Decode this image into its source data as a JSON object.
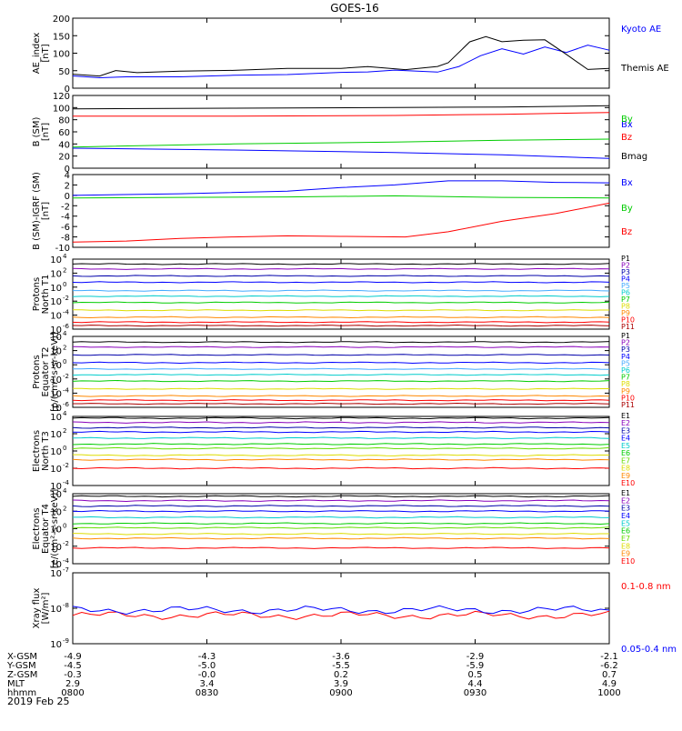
{
  "title": "GOES-16",
  "date": "2019 Feb 25",
  "colors": {
    "black": "#000000",
    "blue": "#0000ff",
    "green": "#00cc00",
    "red": "#ff0000",
    "navy": "#0000aa",
    "purple": "#8800bb",
    "cyan": "#00cccc",
    "lime": "#66dd00",
    "yellow": "#dddd00",
    "orange": "#ff8800",
    "lightblue": "#44aaff",
    "teal": "#00aa88"
  },
  "footer": {
    "rows": [
      {
        "label": "X-GSM",
        "values": [
          "-4.9",
          "-4.3",
          "-3.6",
          "-2.9",
          "-2.1"
        ]
      },
      {
        "label": "Y-GSM",
        "values": [
          "-4.5",
          "-5.0",
          "-5.5",
          "-5.9",
          "-6.2"
        ]
      },
      {
        "label": "Z-GSM",
        "values": [
          "-0.3",
          "-0.0",
          "0.2",
          "0.5",
          "0.7"
        ]
      },
      {
        "label": "MLT",
        "values": [
          "2.9",
          "3.4",
          "3.9",
          "4.4",
          "4.9"
        ]
      },
      {
        "label": "hhmm",
        "values": [
          "0800",
          "0830",
          "0900",
          "0930",
          "1000"
        ]
      }
    ]
  },
  "chart_data": [
    {
      "type": "line",
      "ylabel": [
        "AE_index",
        "[nT]"
      ],
      "ylim": [
        0,
        200
      ],
      "yticks": [
        "200",
        "150",
        "100",
        "50",
        "0"
      ],
      "x": [
        "0800",
        "0830",
        "0900",
        "0930",
        "1000"
      ],
      "series": [
        {
          "name": "Kyoto AE",
          "color": "#0000ff",
          "points": [
            [
              0,
              35
            ],
            [
              0.05,
              30
            ],
            [
              0.1,
              32
            ],
            [
              0.2,
              33
            ],
            [
              0.3,
              36
            ],
            [
              0.4,
              40
            ],
            [
              0.5,
              44
            ],
            [
              0.55,
              48
            ],
            [
              0.6,
              50
            ],
            [
              0.68,
              48
            ],
            [
              0.72,
              60
            ],
            [
              0.76,
              95
            ],
            [
              0.8,
              110
            ],
            [
              0.84,
              100
            ],
            [
              0.88,
              115
            ],
            [
              0.92,
              105
            ],
            [
              0.96,
              120
            ],
            [
              1,
              112
            ]
          ]
        },
        {
          "name": "Themis AE",
          "color": "#000000",
          "points": [
            [
              0,
              40
            ],
            [
              0.05,
              35
            ],
            [
              0.08,
              50
            ],
            [
              0.12,
              45
            ],
            [
              0.2,
              48
            ],
            [
              0.3,
              52
            ],
            [
              0.4,
              55
            ],
            [
              0.5,
              58
            ],
            [
              0.55,
              60
            ],
            [
              0.62,
              55
            ],
            [
              0.68,
              60
            ],
            [
              0.7,
              75
            ],
            [
              0.74,
              130
            ],
            [
              0.77,
              150
            ],
            [
              0.8,
              130
            ],
            [
              0.84,
              140
            ],
            [
              0.88,
              135
            ],
            [
              0.92,
              100
            ],
            [
              0.96,
              50
            ],
            [
              1,
              60
            ]
          ]
        }
      ]
    },
    {
      "type": "line",
      "ylabel": [
        "B (SM)",
        "[nT]"
      ],
      "ylim": [
        0,
        120
      ],
      "yticks": [
        "120",
        "100",
        "80",
        "60",
        "40",
        "20",
        "0"
      ],
      "series": [
        {
          "name": "Bx",
          "color": "#0000ff",
          "points": [
            [
              0,
              33
            ],
            [
              0.3,
              30
            ],
            [
              0.6,
              26
            ],
            [
              0.8,
              22
            ],
            [
              1,
              16
            ]
          ]
        },
        {
          "name": "By",
          "color": "#00cc00",
          "points": [
            [
              0,
              35
            ],
            [
              0.3,
              40
            ],
            [
              0.6,
              43
            ],
            [
              0.8,
              46
            ],
            [
              1,
              48
            ]
          ]
        },
        {
          "name": "Bz",
          "color": "#ff0000",
          "points": [
            [
              0,
              86
            ],
            [
              0.3,
              86
            ],
            [
              0.6,
              87
            ],
            [
              0.8,
              89
            ],
            [
              1,
              92
            ]
          ]
        },
        {
          "name": "Bmag",
          "color": "#000000",
          "points": [
            [
              0,
              98
            ],
            [
              0.3,
              99
            ],
            [
              0.6,
              100
            ],
            [
              0.8,
              101
            ],
            [
              1,
              103
            ]
          ]
        }
      ]
    },
    {
      "type": "line",
      "ylabel": [
        "B (SM)-IGRF (SM)",
        "[nT]"
      ],
      "ylim": [
        -10,
        4
      ],
      "yticks": [
        "4",
        "2",
        "0",
        "-2",
        "-4",
        "-6",
        "-8",
        "-10"
      ],
      "series": [
        {
          "name": "Bx",
          "color": "#0000ff",
          "points": [
            [
              0,
              0
            ],
            [
              0.2,
              0.3
            ],
            [
              0.4,
              0.8
            ],
            [
              0.5,
              1.5
            ],
            [
              0.6,
              2
            ],
            [
              0.7,
              2.8
            ],
            [
              0.8,
              2.8
            ],
            [
              0.9,
              2.5
            ],
            [
              1,
              2.4
            ]
          ]
        },
        {
          "name": "By",
          "color": "#00cc00",
          "points": [
            [
              0,
              -0.5
            ],
            [
              0.2,
              -0.4
            ],
            [
              0.4,
              -0.3
            ],
            [
              0.6,
              -0.1
            ],
            [
              0.8,
              -0.4
            ],
            [
              1,
              -0.5
            ]
          ]
        },
        {
          "name": "Bz",
          "color": "#ff0000",
          "points": [
            [
              0,
              -9
            ],
            [
              0.1,
              -8.8
            ],
            [
              0.2,
              -8.3
            ],
            [
              0.3,
              -8
            ],
            [
              0.4,
              -7.8
            ],
            [
              0.5,
              -7.9
            ],
            [
              0.62,
              -8
            ],
            [
              0.7,
              -7
            ],
            [
              0.8,
              -5
            ],
            [
              0.9,
              -3.5
            ],
            [
              1,
              -1.5
            ]
          ]
        }
      ]
    },
    {
      "type": "line",
      "ylabel": [
        "Protons",
        "North T1"
      ],
      "yscale": "log",
      "ylim": [
        -6,
        4
      ],
      "yticks": [
        {
          "base": "10",
          "exp": "4"
        },
        {
          "base": "10",
          "exp": "2"
        },
        {
          "base": "10",
          "exp": "0"
        },
        {
          "base": "10",
          "exp": "-2"
        },
        {
          "base": "10",
          "exp": "-4"
        },
        {
          "base": "10",
          "exp": "-6"
        }
      ],
      "series": [
        {
          "name": "P1",
          "color": "#000000",
          "level": 3.3
        },
        {
          "name": "P2",
          "color": "#8800bb",
          "level": 2.6
        },
        {
          "name": "P3",
          "color": "#0000aa",
          "level": 1.6
        },
        {
          "name": "P4",
          "color": "#0000ff",
          "level": 0.7
        },
        {
          "name": "P5",
          "color": "#44aaff",
          "level": -0.5
        },
        {
          "name": "P6",
          "color": "#00cccc",
          "level": -1.3
        },
        {
          "name": "P7",
          "color": "#00cc00",
          "level": -2.2
        },
        {
          "name": "P8",
          "color": "#dddd00",
          "level": -3.3
        },
        {
          "name": "P9",
          "color": "#ff8800",
          "level": -4.3
        },
        {
          "name": "P10",
          "color": "#ff0000",
          "level": -5
        },
        {
          "name": "P11",
          "color": "#aa0000",
          "level": -5.5
        }
      ]
    },
    {
      "type": "line",
      "ylabel": [
        "Protons",
        "Equator T2",
        "[p/(cm²-s-sr-keV)]"
      ],
      "yscale": "log",
      "ylim": [
        -6,
        4
      ],
      "yticks": [
        {
          "base": "10",
          "exp": "4"
        },
        {
          "base": "10",
          "exp": "2"
        },
        {
          "base": "10",
          "exp": "0"
        },
        {
          "base": "10",
          "exp": "-2"
        },
        {
          "base": "10",
          "exp": "-4"
        },
        {
          "base": "10",
          "exp": "-6"
        }
      ],
      "series": [
        {
          "name": "P1",
          "color": "#000000",
          "level": 3.2
        },
        {
          "name": "P2",
          "color": "#8800bb",
          "level": 2.5
        },
        {
          "name": "P3",
          "color": "#0000aa",
          "level": 1.4
        },
        {
          "name": "P4",
          "color": "#0000ff",
          "level": 0.3
        },
        {
          "name": "P5",
          "color": "#44aaff",
          "level": -0.6
        },
        {
          "name": "P6",
          "color": "#00cccc",
          "level": -1.4
        },
        {
          "name": "P7",
          "color": "#00cc00",
          "level": -2.3
        },
        {
          "name": "P8",
          "color": "#dddd00",
          "level": -3.4
        },
        {
          "name": "P9",
          "color": "#ff8800",
          "level": -4.4
        },
        {
          "name": "P10",
          "color": "#ff0000",
          "level": -5
        },
        {
          "name": "P11",
          "color": "#aa0000",
          "level": -5.5
        }
      ]
    },
    {
      "type": "line",
      "ylabel": [
        "Electrons",
        "North T3"
      ],
      "yscale": "log",
      "ylim": [
        -4,
        4
      ],
      "yticks": [
        {
          "base": "10",
          "exp": "4"
        },
        {
          "base": "10",
          "exp": "2"
        },
        {
          "base": "10",
          "exp": "0"
        },
        {
          "base": "10",
          "exp": "-2"
        },
        {
          "base": "10",
          "exp": "-4"
        }
      ],
      "series": [
        {
          "name": "E1",
          "color": "#000000",
          "level": 3.8
        },
        {
          "name": "E2",
          "color": "#8800bb",
          "level": 3.3
        },
        {
          "name": "E3",
          "color": "#0000aa",
          "level": 2.7
        },
        {
          "name": "E4",
          "color": "#0000ff",
          "level": 2.2
        },
        {
          "name": "E5",
          "color": "#00cccc",
          "level": 1.5
        },
        {
          "name": "E6",
          "color": "#00cc00",
          "level": 0.8
        },
        {
          "name": "E7",
          "color": "#66dd00",
          "level": 0.3
        },
        {
          "name": "E8",
          "color": "#dddd00",
          "level": -0.5
        },
        {
          "name": "E9",
          "color": "#ff8800",
          "level": -1.0
        },
        {
          "name": "E10",
          "color": "#ff0000",
          "level": -2.0
        }
      ]
    },
    {
      "type": "line",
      "ylabel": [
        "Electrons",
        "Equator T4",
        "[e/(cm²-s-sr-keV)]"
      ],
      "yscale": "log",
      "ylim": [
        -4,
        4
      ],
      "yticks": [
        {
          "base": "10",
          "exp": "4"
        },
        {
          "base": "10",
          "exp": "2"
        },
        {
          "base": "10",
          "exp": "0"
        },
        {
          "base": "10",
          "exp": "-2"
        },
        {
          "base": "10",
          "exp": "-4"
        }
      ],
      "series": [
        {
          "name": "E1",
          "color": "#000000",
          "level": 3.7
        },
        {
          "name": "E2",
          "color": "#8800bb",
          "level": 3.2
        },
        {
          "name": "E3",
          "color": "#0000aa",
          "level": 2.6
        },
        {
          "name": "E4",
          "color": "#0000ff",
          "level": 2.0
        },
        {
          "name": "E5",
          "color": "#00cccc",
          "level": 1.3
        },
        {
          "name": "E6",
          "color": "#00cc00",
          "level": 0.6
        },
        {
          "name": "E7",
          "color": "#66dd00",
          "level": 0.1
        },
        {
          "name": "E8",
          "color": "#dddd00",
          "level": -0.6
        },
        {
          "name": "E9",
          "color": "#ff8800",
          "level": -1.1
        },
        {
          "name": "E10",
          "color": "#ff0000",
          "level": -2.2
        }
      ]
    },
    {
      "type": "line",
      "ylabel": [
        "Xray flux",
        "[W/m²]"
      ],
      "yscale": "log",
      "ylim": [
        -9,
        -7
      ],
      "yticks": [
        {
          "base": "10",
          "exp": "-7"
        },
        {
          "base": "10",
          "exp": "-8"
        },
        {
          "base": "10",
          "exp": "-9"
        }
      ],
      "series": [
        {
          "name": "0.1-0.8 nm",
          "color": "#ff0000",
          "level": -8.2
        },
        {
          "name": "0.05-0.4 nm",
          "color": "#0000ff",
          "level": -8.05
        }
      ]
    }
  ]
}
